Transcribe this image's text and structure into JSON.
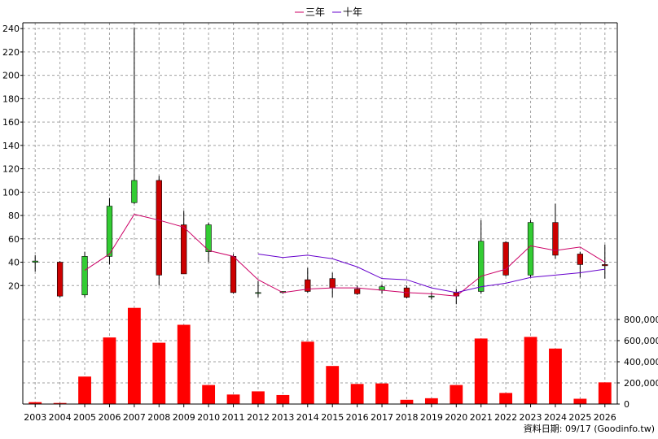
{
  "chart_data": [
    {
      "type": "candlestick",
      "legend": {
        "placement": "top-center",
        "entries": [
          {
            "name": "三年",
            "color": "#cc0066"
          },
          {
            "name": "十年",
            "color": "#6600cc"
          }
        ]
      },
      "grid": true,
      "ylim": [
        0,
        245
      ],
      "yticks": [
        20,
        40,
        60,
        80,
        100,
        120,
        140,
        160,
        180,
        200,
        220,
        240
      ],
      "x": [
        "2003",
        "2004",
        "2005",
        "2006",
        "2007",
        "2008",
        "2009",
        "2010",
        "2011",
        "2012",
        "2013",
        "2014",
        "2015",
        "2016",
        "2017",
        "2018",
        "2019",
        "2020",
        "2021",
        "2022",
        "2023",
        "2024",
        "2025",
        "2026"
      ],
      "candles": [
        {
          "open": 40,
          "close": 41,
          "high": 46,
          "low": 32
        },
        {
          "open": 40,
          "close": 11,
          "high": 41,
          "low": 10
        },
        {
          "open": 12,
          "close": 45,
          "high": 49,
          "low": 10
        },
        {
          "open": 45,
          "close": 88,
          "high": 95,
          "low": 38
        },
        {
          "open": 91,
          "close": 110,
          "high": 241,
          "low": 90
        },
        {
          "open": 110,
          "close": 29,
          "high": 114,
          "low": 20
        },
        {
          "open": 72,
          "close": 30,
          "high": 84,
          "low": 30
        },
        {
          "open": 49,
          "close": 72,
          "high": 74,
          "low": 40
        },
        {
          "open": 45,
          "close": 14,
          "high": 47,
          "low": 13
        },
        {
          "open": 14,
          "close": 14,
          "high": 24,
          "low": 10
        },
        {
          "open": 14,
          "close": 15,
          "high": 15,
          "low": 13
        },
        {
          "open": 25,
          "close": 15,
          "high": 35,
          "low": 14
        },
        {
          "open": 26,
          "close": 18,
          "high": 31,
          "low": 10
        },
        {
          "open": 17,
          "close": 13,
          "high": 20,
          "low": 12
        },
        {
          "open": 16,
          "close": 19,
          "high": 21,
          "low": 13
        },
        {
          "open": 18,
          "close": 10,
          "high": 20,
          "low": 9
        },
        {
          "open": 11,
          "close": 11,
          "high": 14,
          "low": 8
        },
        {
          "open": 14,
          "close": 11,
          "high": 17,
          "low": 4
        },
        {
          "open": 15,
          "close": 58,
          "high": 76,
          "low": 13
        },
        {
          "open": 57,
          "close": 29,
          "high": 58,
          "low": 28
        },
        {
          "open": 29,
          "close": 74,
          "high": 76,
          "low": 27
        },
        {
          "open": 74,
          "close": 46,
          "high": 90,
          "low": 43
        },
        {
          "open": 47,
          "close": 38,
          "high": 49,
          "low": 27
        },
        {
          "open": 38,
          "close": 37,
          "high": 55,
          "low": 26
        }
      ],
      "series": [
        {
          "name": "三年",
          "values": [
            null,
            null,
            33,
            47,
            81,
            76,
            70,
            50,
            45,
            25,
            14,
            17,
            18,
            18,
            16,
            14,
            13,
            11,
            28,
            34,
            54,
            50,
            53,
            40
          ]
        },
        {
          "name": "十年",
          "values": [
            null,
            null,
            null,
            null,
            null,
            null,
            null,
            null,
            null,
            47,
            44,
            46,
            43,
            36,
            26,
            25,
            18,
            14,
            19,
            22,
            27,
            29,
            31,
            34
          ]
        }
      ]
    },
    {
      "type": "bar",
      "ylim": [
        0,
        900000
      ],
      "yticks": [
        0,
        200000,
        400000,
        600000,
        800000
      ],
      "ytick_labels": [
        "0",
        "200,000",
        "400,000",
        "600,000",
        "800,000"
      ],
      "x": [
        "2003",
        "2004",
        "2005",
        "2006",
        "2007",
        "2008",
        "2009",
        "2010",
        "2011",
        "2012",
        "2013",
        "2014",
        "2015",
        "2016",
        "2017",
        "2018",
        "2019",
        "2020",
        "2021",
        "2022",
        "2023",
        "2024",
        "2025",
        "2026"
      ],
      "values": [
        18000,
        10000,
        260000,
        630000,
        910000,
        580000,
        750000,
        180000,
        90000,
        120000,
        85000,
        590000,
        360000,
        190000,
        195000,
        40000,
        55000,
        180000,
        620000,
        105000,
        635000,
        525000,
        50000,
        205000
      ],
      "color": "#ff0000"
    }
  ],
  "footer": {
    "text": "資料日期: 09/17  (Goodinfo.tw)"
  }
}
